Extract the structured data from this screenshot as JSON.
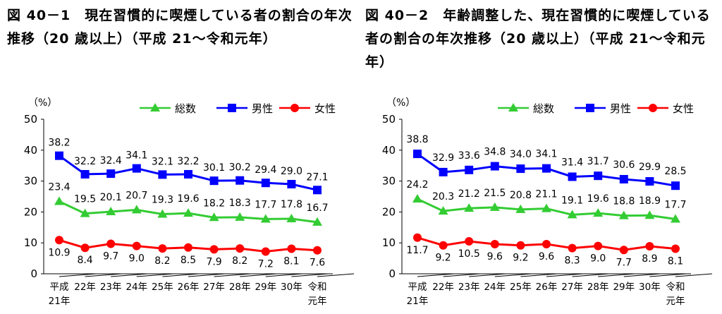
{
  "chart_data": [
    {
      "type": "line",
      "title": "図 40－1　現在習慣的に喫煙している者の割合の年次推移（20 歳以上）（平成 21～令和元年）",
      "ylabel": "（%）",
      "ylim": [
        0,
        50
      ],
      "yticks": [
        "0",
        "10",
        "20",
        "30",
        "40",
        "50"
      ],
      "categories": [
        "平成\n21年",
        "22年",
        "23年",
        "24年",
        "25年",
        "26年",
        "27年",
        "28年",
        "29年",
        "30年",
        "令和\n元年"
      ],
      "legend_position": "top-right",
      "grid": false,
      "series": [
        {
          "name": "総数",
          "color": "#33CC33",
          "marker": "triangle",
          "values": [
            23.4,
            19.5,
            20.1,
            20.7,
            19.3,
            19.6,
            18.2,
            18.3,
            17.7,
            17.8,
            16.7
          ]
        },
        {
          "name": "男性",
          "color": "#0000FF",
          "marker": "square",
          "values": [
            38.2,
            32.2,
            32.4,
            34.1,
            32.1,
            32.2,
            30.1,
            30.2,
            29.4,
            29.0,
            27.1
          ]
        },
        {
          "name": "女性",
          "color": "#FF0000",
          "marker": "circle",
          "values": [
            10.9,
            8.4,
            9.7,
            9.0,
            8.2,
            8.5,
            7.9,
            8.2,
            7.2,
            8.1,
            7.6
          ]
        }
      ]
    },
    {
      "type": "line",
      "title": "図 40－2　年齢調整した、現在習慣的に喫煙している者の割合の年次推移（20 歳以上）（平成 21～令和元年）",
      "ylabel": "（%）",
      "ylim": [
        0,
        50
      ],
      "yticks": [
        "0",
        "10",
        "20",
        "30",
        "40",
        "50"
      ],
      "categories": [
        "平成\n21年",
        "22年",
        "23年",
        "24年",
        "25年",
        "26年",
        "27年",
        "28年",
        "29年",
        "30年",
        "令和\n元年"
      ],
      "legend_position": "top-right",
      "grid": false,
      "series": [
        {
          "name": "総数",
          "color": "#33CC33",
          "marker": "triangle",
          "values": [
            24.2,
            20.3,
            21.2,
            21.5,
            20.8,
            21.1,
            19.1,
            19.6,
            18.8,
            18.9,
            17.7
          ]
        },
        {
          "name": "男性",
          "color": "#0000FF",
          "marker": "square",
          "values": [
            38.8,
            32.9,
            33.6,
            34.8,
            34.0,
            34.1,
            31.4,
            31.7,
            30.6,
            29.9,
            28.5
          ]
        },
        {
          "name": "女性",
          "color": "#FF0000",
          "marker": "circle",
          "values": [
            11.7,
            9.2,
            10.5,
            9.6,
            9.2,
            9.6,
            8.3,
            9.0,
            7.7,
            8.9,
            8.1
          ]
        }
      ]
    }
  ]
}
